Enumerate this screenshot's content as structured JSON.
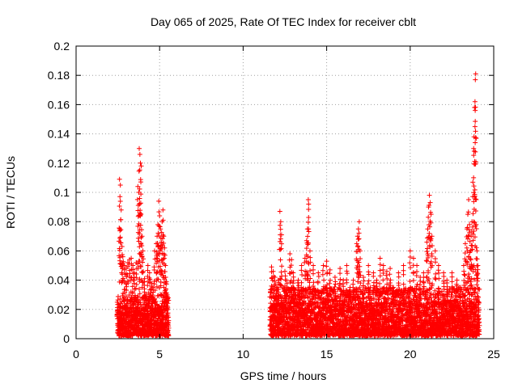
{
  "chart_data": {
    "type": "scatter",
    "title": "Day 065 of 2025, Rate Of TEC Index for receiver cblt",
    "xlabel": "GPS time / hours",
    "ylabel": "ROTI / TECUs",
    "xlim": [
      0,
      25
    ],
    "ylim": [
      0,
      0.2
    ],
    "xticks": [
      0,
      5,
      10,
      15,
      20,
      25
    ],
    "yticks": [
      0,
      0.02,
      0.04,
      0.06,
      0.08,
      0.1,
      0.12,
      0.14,
      0.16,
      0.18,
      0.2
    ],
    "grid": true,
    "marker": "+",
    "color": "#ff0000",
    "series": [
      {
        "name": "ROTI",
        "points": [
          [
            2.6,
            0.109
          ],
          [
            2.65,
            0.105
          ],
          [
            2.7,
            0.088
          ],
          [
            2.62,
            0.075
          ],
          [
            2.75,
            0.063
          ],
          [
            2.8,
            0.056
          ],
          [
            2.9,
            0.05
          ],
          [
            3.0,
            0.048
          ],
          [
            3.1,
            0.052
          ],
          [
            3.2,
            0.054
          ],
          [
            3.3,
            0.055
          ],
          [
            3.4,
            0.05
          ],
          [
            3.5,
            0.045
          ],
          [
            3.6,
            0.052
          ],
          [
            3.7,
            0.104
          ],
          [
            3.75,
            0.1
          ],
          [
            3.8,
            0.092
          ],
          [
            3.78,
            0.13
          ],
          [
            3.82,
            0.126
          ],
          [
            3.85,
            0.12
          ],
          [
            3.9,
            0.118
          ],
          [
            3.88,
            0.085
          ],
          [
            3.95,
            0.07
          ],
          [
            4.0,
            0.06
          ],
          [
            4.1,
            0.041
          ],
          [
            4.2,
            0.03
          ],
          [
            4.3,
            0.05
          ],
          [
            4.4,
            0.045
          ],
          [
            4.5,
            0.038
          ],
          [
            4.6,
            0.035
          ],
          [
            4.7,
            0.06
          ],
          [
            4.8,
            0.065
          ],
          [
            4.85,
            0.07
          ],
          [
            4.9,
            0.078
          ],
          [
            4.95,
            0.094
          ],
          [
            5.0,
            0.084
          ],
          [
            5.05,
            0.075
          ],
          [
            5.1,
            0.066
          ],
          [
            5.15,
            0.08
          ],
          [
            5.2,
            0.088
          ],
          [
            5.25,
            0.07
          ],
          [
            5.3,
            0.062
          ],
          [
            5.35,
            0.05
          ],
          [
            5.4,
            0.039
          ],
          [
            5.45,
            0.03
          ],
          [
            11.7,
            0.049
          ],
          [
            11.8,
            0.046
          ],
          [
            11.9,
            0.042
          ],
          [
            12.0,
            0.035
          ],
          [
            12.1,
            0.04
          ],
          [
            12.2,
            0.087
          ],
          [
            12.25,
            0.08
          ],
          [
            12.3,
            0.071
          ],
          [
            12.5,
            0.046
          ],
          [
            12.6,
            0.04
          ],
          [
            12.8,
            0.058
          ],
          [
            12.9,
            0.054
          ],
          [
            13.0,
            0.045
          ],
          [
            13.3,
            0.04
          ],
          [
            13.5,
            0.05
          ],
          [
            13.7,
            0.055
          ],
          [
            13.8,
            0.067
          ],
          [
            13.85,
            0.075
          ],
          [
            13.9,
            0.095
          ],
          [
            13.92,
            0.092
          ],
          [
            14.0,
            0.06
          ],
          [
            14.2,
            0.05
          ],
          [
            14.5,
            0.045
          ],
          [
            14.8,
            0.05
          ],
          [
            15.0,
            0.053
          ],
          [
            15.2,
            0.047
          ],
          [
            15.5,
            0.042
          ],
          [
            15.8,
            0.048
          ],
          [
            16.0,
            0.04
          ],
          [
            16.2,
            0.05
          ],
          [
            16.4,
            0.035
          ],
          [
            16.6,
            0.04
          ],
          [
            16.8,
            0.065
          ],
          [
            16.85,
            0.07
          ],
          [
            16.9,
            0.075
          ],
          [
            16.95,
            0.08
          ],
          [
            17.0,
            0.06
          ],
          [
            17.2,
            0.042
          ],
          [
            17.5,
            0.05
          ],
          [
            17.8,
            0.045
          ],
          [
            18.0,
            0.04
          ],
          [
            18.2,
            0.055
          ],
          [
            18.4,
            0.05
          ],
          [
            18.6,
            0.046
          ],
          [
            18.8,
            0.048
          ],
          [
            19.0,
            0.035
          ],
          [
            19.3,
            0.045
          ],
          [
            19.6,
            0.05
          ],
          [
            20.0,
            0.06
          ],
          [
            20.2,
            0.055
          ],
          [
            20.4,
            0.05
          ],
          [
            20.6,
            0.042
          ],
          [
            20.8,
            0.045
          ],
          [
            21.0,
            0.066
          ],
          [
            21.05,
            0.075
          ],
          [
            21.1,
            0.09
          ],
          [
            21.15,
            0.098
          ],
          [
            21.2,
            0.093
          ],
          [
            21.25,
            0.085
          ],
          [
            21.3,
            0.07
          ],
          [
            21.5,
            0.06
          ],
          [
            21.7,
            0.05
          ],
          [
            22.0,
            0.045
          ],
          [
            22.2,
            0.04
          ],
          [
            22.5,
            0.045
          ],
          [
            22.8,
            0.04
          ],
          [
            23.0,
            0.035
          ],
          [
            23.2,
            0.05
          ],
          [
            23.3,
            0.065
          ],
          [
            23.4,
            0.075
          ],
          [
            23.45,
            0.085
          ],
          [
            23.5,
            0.095
          ],
          [
            23.55,
            0.078
          ],
          [
            23.6,
            0.06
          ],
          [
            23.65,
            0.07
          ],
          [
            23.7,
            0.08
          ],
          [
            23.75,
            0.107
          ],
          [
            23.8,
            0.13
          ],
          [
            23.82,
            0.138
          ],
          [
            23.85,
            0.158
          ],
          [
            23.88,
            0.162
          ],
          [
            23.9,
            0.177
          ],
          [
            23.92,
            0.181
          ],
          [
            23.95,
            0.095
          ],
          [
            24.0,
            0.06
          ],
          [
            24.05,
            0.05
          ]
        ]
      }
    ],
    "dense_segments": [
      {
        "x_start": 2.45,
        "x_end": 5.55,
        "y_min": 0.002,
        "y_max": 0.03
      },
      {
        "x_start": 11.6,
        "x_end": 24.15,
        "y_min": 0.002,
        "y_max": 0.035
      }
    ]
  }
}
